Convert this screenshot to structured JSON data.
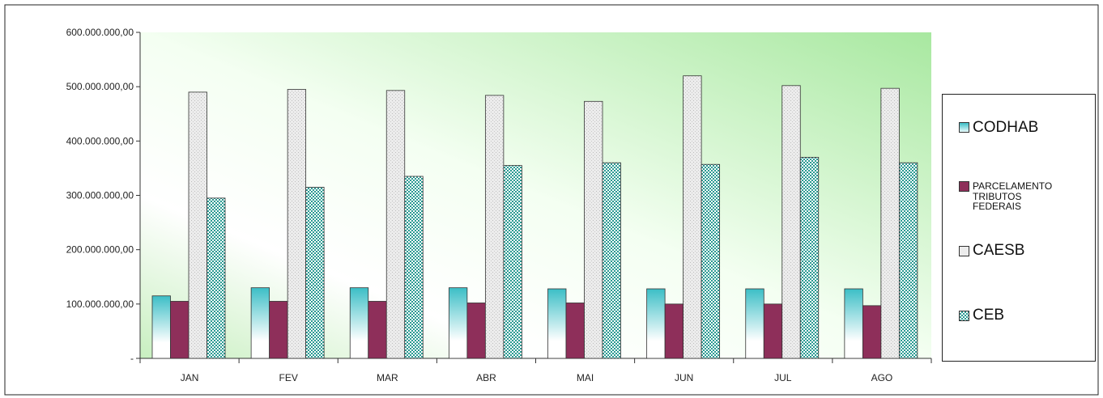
{
  "chart_data": {
    "type": "bar",
    "categories": [
      "JAN",
      "FEV",
      "MAR",
      "ABR",
      "MAI",
      "JUN",
      "JUL",
      "AGO"
    ],
    "series": [
      {
        "name": "CODHAB",
        "color": "#3fc0c8",
        "pattern": "gradient",
        "values": [
          115000000,
          130000000,
          130000000,
          130000000,
          128000000,
          128000000,
          128000000,
          128000000
        ]
      },
      {
        "name": "PARCELAMENTO TRIBUTOS FEDERAIS",
        "color": "#8e2f5a",
        "pattern": "solid",
        "values": [
          105000000,
          105000000,
          105000000,
          102000000,
          102000000,
          100000000,
          100000000,
          97000000
        ]
      },
      {
        "name": "CAESB",
        "color": "#e6e6e6",
        "pattern": "texture",
        "values": [
          490000000,
          495000000,
          493000000,
          484000000,
          473000000,
          520000000,
          502000000,
          497000000
        ]
      },
      {
        "name": "CEB",
        "color": "#2f9c95",
        "pattern": "checker",
        "values": [
          295000000,
          315000000,
          335000000,
          355000000,
          360000000,
          357000000,
          370000000,
          360000000
        ]
      }
    ],
    "y_ticks": [
      "-",
      "100.000.000,00",
      "200.000.000,00",
      "300.000.000,00",
      "400.000.000,00",
      "500.000.000,00",
      "600.000.000,00"
    ],
    "ylim": [
      0,
      600000000
    ],
    "grid": false,
    "legend_position": "right",
    "background": "green-gradient"
  }
}
